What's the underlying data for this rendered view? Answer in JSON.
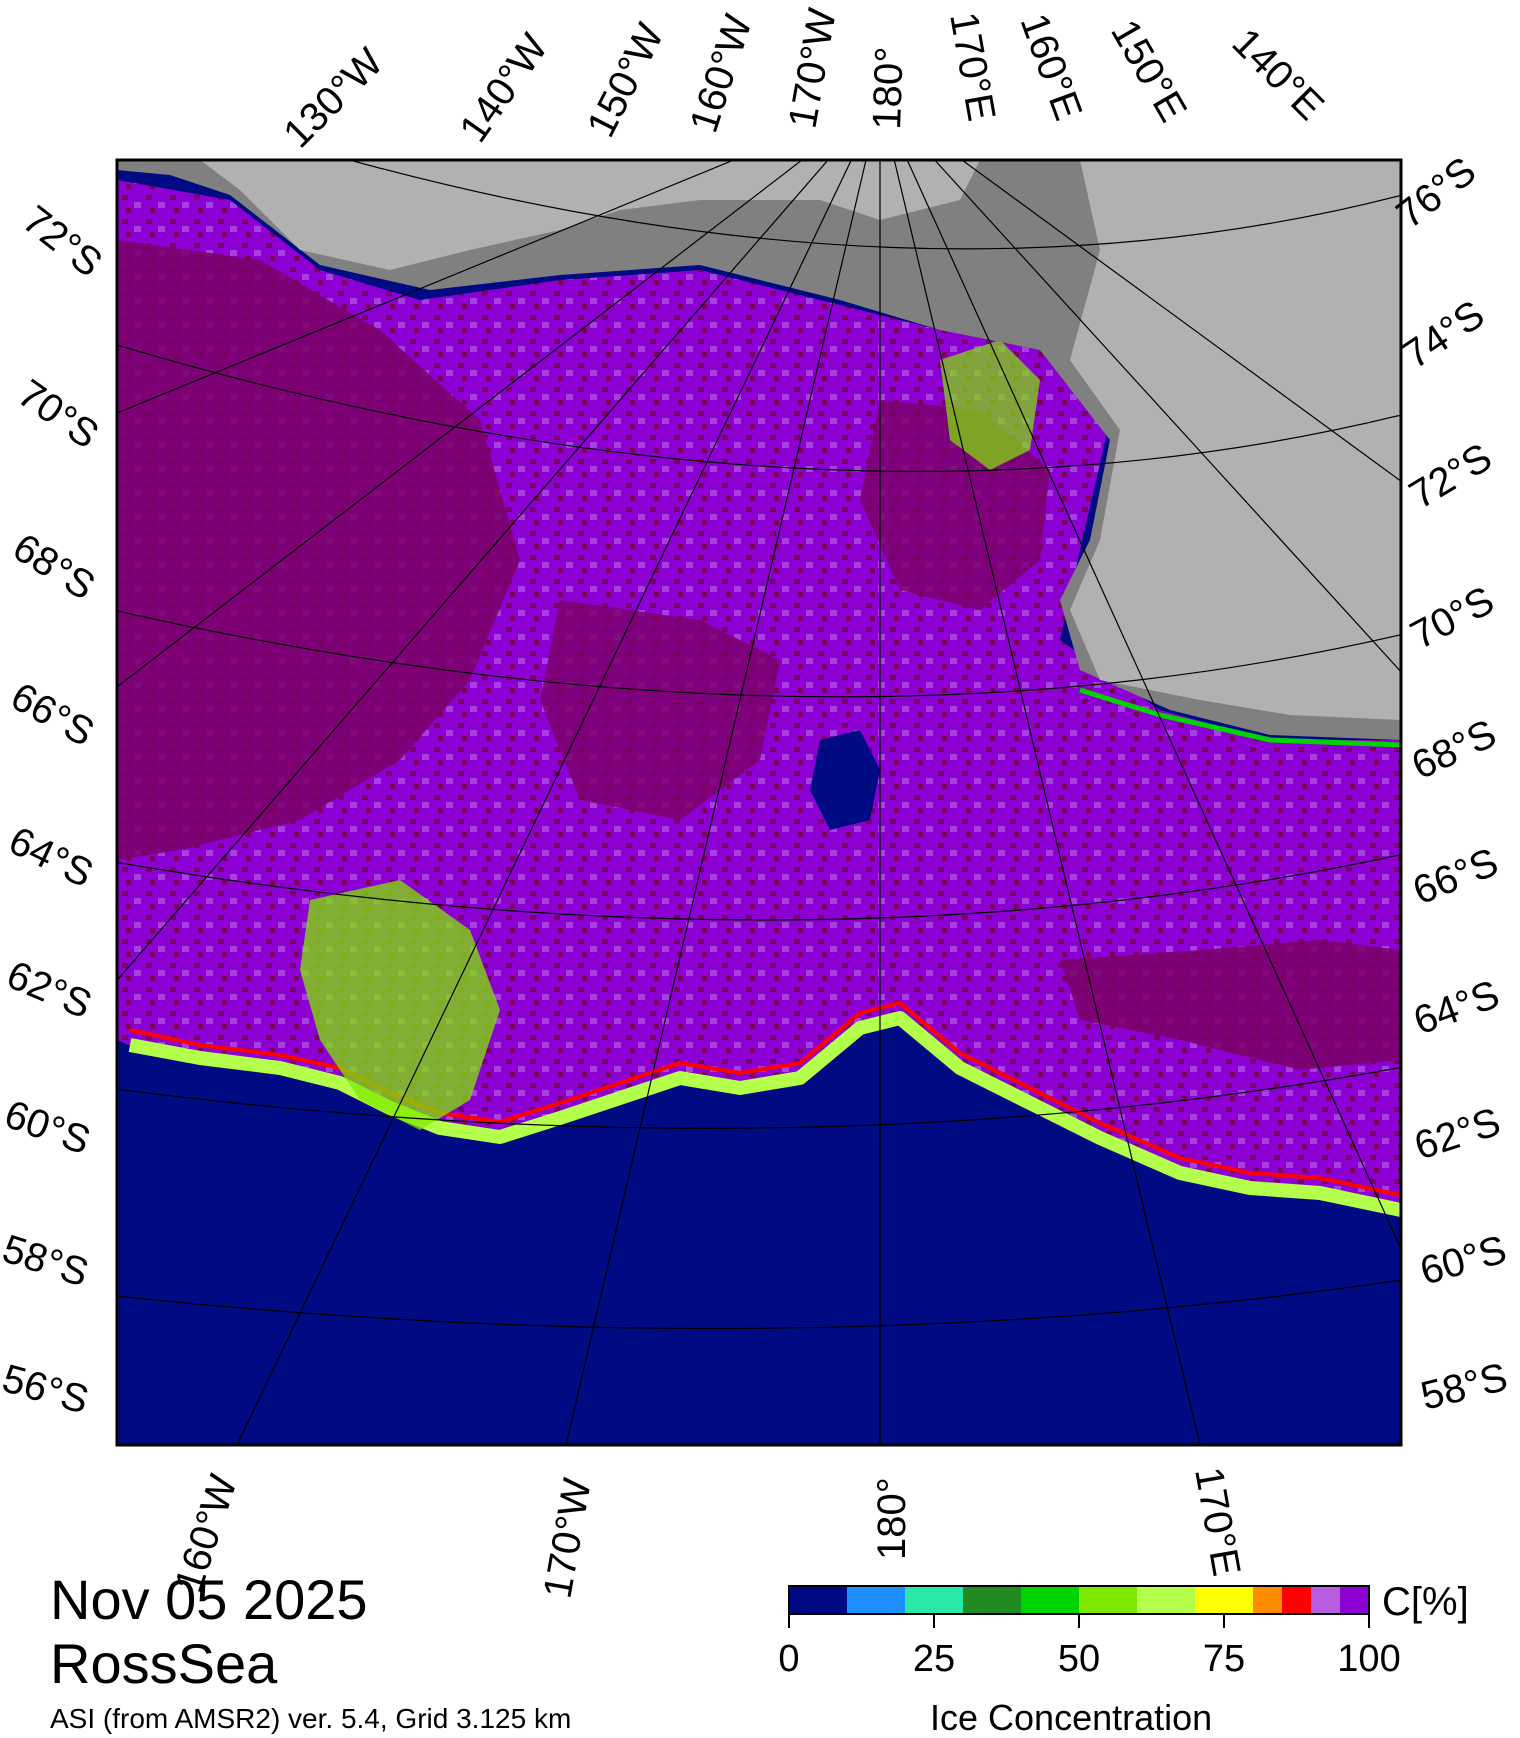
{
  "map": {
    "date": "Nov 05 2025",
    "region": "RossSea",
    "caption": "ASI (from AMSR2) ver. 5.4,  Grid 3.125 km",
    "colors": {
      "open_water": "#000b83",
      "land_ice": "#b1b1b1",
      "ice_shelf": "#808080",
      "full_ice_dark": "#7b0066",
      "full_ice": "#8c00d4"
    },
    "top_lon_labels": [
      "130°W",
      "140°W",
      "150°W",
      "160°W",
      "170°W",
      "180°",
      "170°E",
      "160°E",
      "150°E",
      "140°E"
    ],
    "bottom_lon_labels": [
      "160°W",
      "170°W",
      "180°",
      "170°E"
    ],
    "left_lat_labels": [
      "72°S",
      "70°S",
      "68°S",
      "66°S",
      "64°S",
      "62°S",
      "60°S",
      "58°S",
      "56°S"
    ],
    "right_lat_labels": [
      "76°S",
      "74°S",
      "72°S",
      "70°S",
      "68°S",
      "66°S",
      "64°S",
      "62°S",
      "60°S",
      "58°S"
    ]
  },
  "colorbar": {
    "title": "Ice Concentration",
    "unit": "C[%]",
    "ticks": [
      "0",
      "25",
      "50",
      "75",
      "100"
    ],
    "colors": [
      "#000b83",
      "#1e8fff",
      "#28e7a8",
      "#1f8b21",
      "#00d400",
      "#7fe800",
      "#b3ff4c",
      "#ffff00",
      "#ff8c00",
      "#ff0000",
      "#b65de0",
      "#8c00d4"
    ],
    "bounds": [
      0,
      10,
      20,
      30,
      40,
      50,
      60,
      70,
      80,
      85,
      90,
      95,
      100
    ]
  }
}
